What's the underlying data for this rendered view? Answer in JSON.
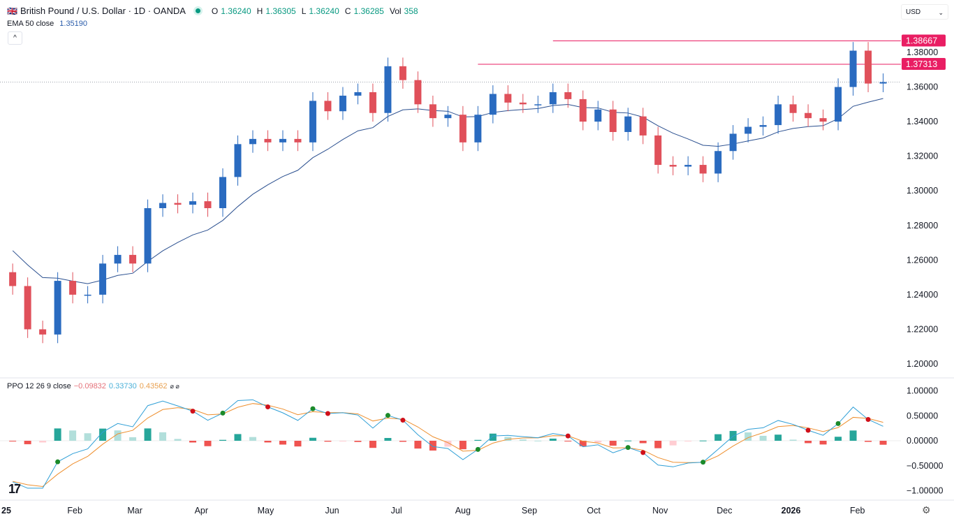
{
  "header": {
    "symbol_title": "British Pound / U.S. Dollar · 1D · OANDA",
    "ohlc": {
      "o_label": "O",
      "o": "1.36240",
      "h_label": "H",
      "h": "1.36305",
      "l_label": "L",
      "l": "1.36240",
      "c_label": "C",
      "c": "1.36285",
      "vol_label": "Vol",
      "vol": "358"
    },
    "ema_label": "EMA 50 close",
    "ema_value": "1.35190",
    "collapse_icon": "^",
    "currency": "USD"
  },
  "ppo_legend": {
    "label": "PPO 12 26 9 close",
    "hist": "−0.09832",
    "ppo": "0.33730",
    "signal": "0.43562",
    "icons": "⌀ ⌀"
  },
  "colors": {
    "up": "#2a6bc0",
    "down": "#e0505a",
    "ema": "#2a4f8f",
    "ppo": "#2f9fd6",
    "signal": "#ee8f2e",
    "hist_up_strong": "#26a69a",
    "hist_up_weak": "#b2dfdb",
    "hist_dn_strong": "#ef5350",
    "hist_dn_weak": "#ffcdd2",
    "level": "#e91e63"
  },
  "chart_data": [
    {
      "type": "candlestick",
      "title": "British Pound / U.S. Dollar · 1D · OANDA",
      "x": [
        "2025-01-03",
        "2025-01-10",
        "2025-01-17",
        "2025-01-24",
        "2025-01-31",
        "2025-02-07",
        "2025-02-14",
        "2025-02-21",
        "2025-02-28",
        "2025-03-07",
        "2025-03-14",
        "2025-03-21",
        "2025-03-28",
        "2025-04-04",
        "2025-04-11",
        "2025-04-18",
        "2025-04-25",
        "2025-05-02",
        "2025-05-09",
        "2025-05-16",
        "2025-05-23",
        "2025-05-30",
        "2025-06-06",
        "2025-06-13",
        "2025-06-20",
        "2025-06-27",
        "2025-07-04",
        "2025-07-11",
        "2025-07-18",
        "2025-07-25",
        "2025-08-01",
        "2025-08-08",
        "2025-08-15",
        "2025-08-22",
        "2025-08-29",
        "2025-09-05",
        "2025-09-12",
        "2025-09-19",
        "2025-09-26",
        "2025-10-03",
        "2025-10-10",
        "2025-10-17",
        "2025-10-24",
        "2025-10-31",
        "2025-11-07",
        "2025-11-14",
        "2025-11-21",
        "2025-11-28",
        "2025-12-05",
        "2025-12-12",
        "2025-12-19",
        "2025-12-26",
        "2026-01-02",
        "2026-01-09",
        "2026-01-16",
        "2026-01-23",
        "2026-01-30",
        "2026-02-06",
        "2026-02-13"
      ],
      "close": [
        1.245,
        1.22,
        1.217,
        1.248,
        1.24,
        1.24,
        1.258,
        1.263,
        1.258,
        1.29,
        1.293,
        1.292,
        1.294,
        1.29,
        1.308,
        1.327,
        1.33,
        1.328,
        1.33,
        1.328,
        1.352,
        1.346,
        1.355,
        1.357,
        1.345,
        1.372,
        1.364,
        1.35,
        1.342,
        1.344,
        1.328,
        1.344,
        1.356,
        1.351,
        1.35,
        1.35,
        1.357,
        1.353,
        1.34,
        1.347,
        1.334,
        1.343,
        1.332,
        1.315,
        1.314,
        1.315,
        1.31,
        1.323,
        1.333,
        1.337,
        1.338,
        1.35,
        1.345,
        1.342,
        1.34,
        1.36,
        1.381,
        1.362,
        1.36285
      ],
      "overlay": "EMA 50 close",
      "price_levels": [
        {
          "value": 1.38667,
          "label": "1.38667",
          "from": "2025-09-12"
        },
        {
          "value": 1.37313,
          "label": "1.37313",
          "from": "2025-08-08"
        }
      ],
      "last_price": 1.36285,
      "y_ticks": [
        "1.20000",
        "1.22000",
        "1.24000",
        "1.26000",
        "1.28000",
        "1.30000",
        "1.32000",
        "1.34000",
        "1.36000",
        "1.38000"
      ],
      "ylim": [
        1.2,
        1.38
      ],
      "x_ticks": [
        {
          "label": "25",
          "date": "2025-01-01"
        },
        {
          "label": "Feb",
          "date": "2025-02-01"
        },
        {
          "label": "Mar",
          "date": "2025-03-01"
        },
        {
          "label": "Apr",
          "date": "2025-04-01"
        },
        {
          "label": "May",
          "date": "2025-05-01"
        },
        {
          "label": "Jun",
          "date": "2025-06-01"
        },
        {
          "label": "Jul",
          "date": "2025-07-01"
        },
        {
          "label": "Aug",
          "date": "2025-08-01"
        },
        {
          "label": "Sep",
          "date": "2025-09-01"
        },
        {
          "label": "Oct",
          "date": "2025-10-01"
        },
        {
          "label": "Nov",
          "date": "2025-11-01"
        },
        {
          "label": "Dec",
          "date": "2025-12-01"
        },
        {
          "label": "2026",
          "date": "2026-01-01"
        },
        {
          "label": "Feb",
          "date": "2026-02-01"
        }
      ],
      "grid": false
    },
    {
      "type": "line+histogram",
      "title": "PPO 12 26 9 close",
      "series": [
        "PPO",
        "Signal",
        "Histogram"
      ],
      "y_ticks": [
        "1.00000",
        "0.50000",
        "0.00000",
        "−0.50000",
        "−1.00000"
      ],
      "ylim": [
        -1.0,
        1.0
      ]
    }
  ]
}
